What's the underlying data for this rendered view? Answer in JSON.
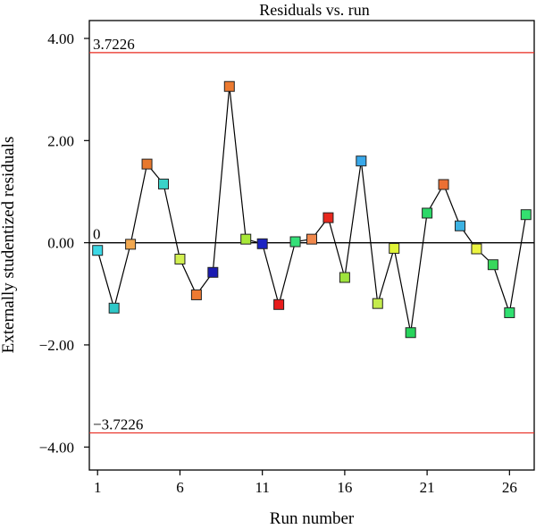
{
  "chart_data": {
    "type": "scatter",
    "title": "Residuals vs. run",
    "xlabel": "Run number",
    "ylabel": "Externally studentized residuals",
    "xlim": [
      0.5,
      27.5
    ],
    "ylim": [
      -4.45,
      4.35
    ],
    "x_ticks": [
      1,
      6,
      11,
      16,
      21,
      26
    ],
    "x_tick_labels": [
      "1",
      "6",
      "11",
      "16",
      "21",
      "26"
    ],
    "y_ticks": [
      4,
      2,
      0,
      -2,
      -4
    ],
    "y_tick_labels": [
      "4.00",
      "2.00",
      "0.00",
      "−2.00",
      "−4.00"
    ],
    "grid": false,
    "legend": "none",
    "reference_lines": [
      {
        "value": 3.7226,
        "label": "3.7226",
        "color": "#e8281e"
      },
      {
        "value": 0,
        "label": "0",
        "color": "#000000"
      },
      {
        "value": -3.7226,
        "label": "−3.7226",
        "color": "#e8281e"
      }
    ],
    "series": [
      {
        "x": [
          1,
          2,
          3,
          4,
          5,
          6,
          7,
          8,
          9,
          10,
          11,
          12,
          13,
          14,
          15,
          16,
          17,
          18,
          19,
          20,
          21,
          22,
          23,
          24,
          25,
          26,
          27
        ],
        "y": [
          -0.15,
          -1.28,
          -0.03,
          1.54,
          1.15,
          -0.32,
          -1.02,
          -0.58,
          3.06,
          0.07,
          -0.02,
          -1.21,
          0.02,
          0.07,
          0.49,
          -0.68,
          1.6,
          -1.19,
          -0.11,
          -1.76,
          0.58,
          1.14,
          0.33,
          -0.12,
          -0.43,
          -1.37,
          0.55
        ],
        "colors": [
          "#3bd8e6",
          "#2ec8c8",
          "#f2a850",
          "#e8782c",
          "#3ad2c8",
          "#d2f050",
          "#ee7a32",
          "#1b1bb2",
          "#ec7a30",
          "#a8e838",
          "#1c24c2",
          "#e81c1c",
          "#34e078",
          "#f0884c",
          "#e8281e",
          "#9ee43c",
          "#38a8ea",
          "#c4ec4c",
          "#e0f438",
          "#28d45c",
          "#2cd868",
          "#ec7034",
          "#3cb2e2",
          "#ecf440",
          "#38d85c",
          "#30e070",
          "#34e070"
        ]
      }
    ]
  }
}
